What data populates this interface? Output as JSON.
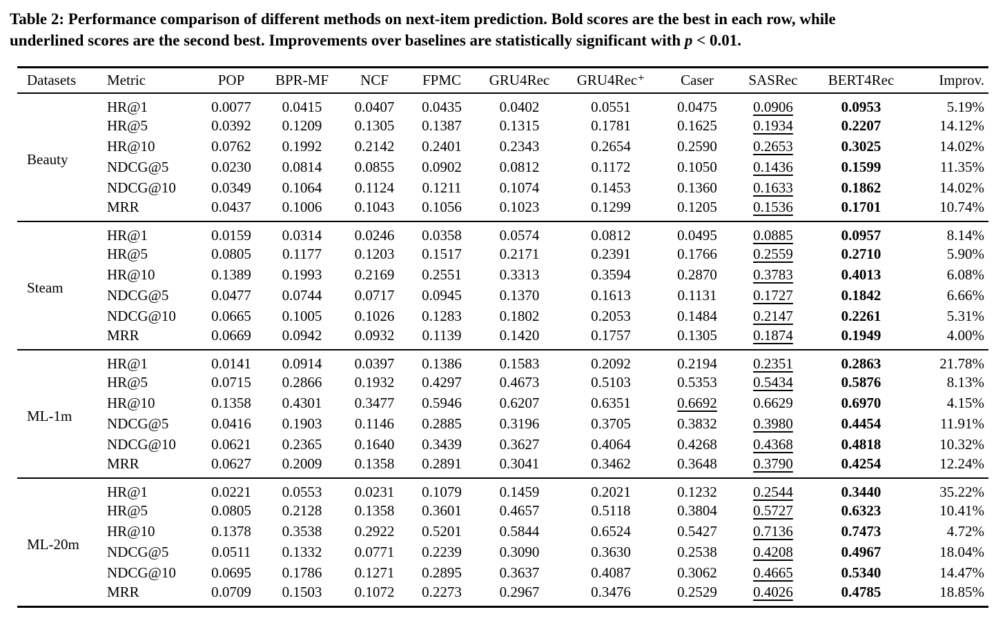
{
  "caption": {
    "line1": "Table 2: Performance comparison of different methods on next-item prediction. Bold scores are the best in each row, while",
    "line2_pre": "underlined scores are the second best. Improvements over baselines are statistically significant with ",
    "p_var": "p",
    "tail": " < 0.01."
  },
  "chart_data": {
    "type": "table",
    "title": "Table 2: Performance comparison of different methods on next-item prediction",
    "columns": [
      "Datasets",
      "Metric",
      "POP",
      "BPR-MF",
      "NCF",
      "FPMC",
      "GRU4Rec",
      "GRU4Rec⁺",
      "Caser",
      "SASRec",
      "BERT4Rec",
      "Improv."
    ],
    "groups": [
      {
        "dataset": "Beauty",
        "rows": [
          {
            "metric": "HR@1",
            "values": [
              "0.0077",
              "0.0415",
              "0.0407",
              "0.0435",
              "0.0402",
              "0.0551",
              "0.0475",
              "0.0906",
              "0.0953",
              "5.19%"
            ],
            "underline": 7,
            "bold": 8
          },
          {
            "metric": "HR@5",
            "values": [
              "0.0392",
              "0.1209",
              "0.1305",
              "0.1387",
              "0.1315",
              "0.1781",
              "0.1625",
              "0.1934",
              "0.2207",
              "14.12%"
            ],
            "underline": 7,
            "bold": 8
          },
          {
            "metric": "HR@10",
            "values": [
              "0.0762",
              "0.1992",
              "0.2142",
              "0.2401",
              "0.2343",
              "0.2654",
              "0.2590",
              "0.2653",
              "0.3025",
              "14.02%"
            ],
            "underline": 7,
            "bold": 8
          },
          {
            "metric": "NDCG@5",
            "values": [
              "0.0230",
              "0.0814",
              "0.0855",
              "0.0902",
              "0.0812",
              "0.1172",
              "0.1050",
              "0.1436",
              "0.1599",
              "11.35%"
            ],
            "underline": 7,
            "bold": 8
          },
          {
            "metric": "NDCG@10",
            "values": [
              "0.0349",
              "0.1064",
              "0.1124",
              "0.1211",
              "0.1074",
              "0.1453",
              "0.1360",
              "0.1633",
              "0.1862",
              "14.02%"
            ],
            "underline": 7,
            "bold": 8
          },
          {
            "metric": "MRR",
            "values": [
              "0.0437",
              "0.1006",
              "0.1043",
              "0.1056",
              "0.1023",
              "0.1299",
              "0.1205",
              "0.1536",
              "0.1701",
              "10.74%"
            ],
            "underline": 7,
            "bold": 8
          }
        ]
      },
      {
        "dataset": "Steam",
        "rows": [
          {
            "metric": "HR@1",
            "values": [
              "0.0159",
              "0.0314",
              "0.0246",
              "0.0358",
              "0.0574",
              "0.0812",
              "0.0495",
              "0.0885",
              "0.0957",
              "8.14%"
            ],
            "underline": 7,
            "bold": 8
          },
          {
            "metric": "HR@5",
            "values": [
              "0.0805",
              "0.1177",
              "0.1203",
              "0.1517",
              "0.2171",
              "0.2391",
              "0.1766",
              "0.2559",
              "0.2710",
              "5.90%"
            ],
            "underline": 7,
            "bold": 8
          },
          {
            "metric": "HR@10",
            "values": [
              "0.1389",
              "0.1993",
              "0.2169",
              "0.2551",
              "0.3313",
              "0.3594",
              "0.2870",
              "0.3783",
              "0.4013",
              "6.08%"
            ],
            "underline": 7,
            "bold": 8
          },
          {
            "metric": "NDCG@5",
            "values": [
              "0.0477",
              "0.0744",
              "0.0717",
              "0.0945",
              "0.1370",
              "0.1613",
              "0.1131",
              "0.1727",
              "0.1842",
              "6.66%"
            ],
            "underline": 7,
            "bold": 8
          },
          {
            "metric": "NDCG@10",
            "values": [
              "0.0665",
              "0.1005",
              "0.1026",
              "0.1283",
              "0.1802",
              "0.2053",
              "0.1484",
              "0.2147",
              "0.2261",
              "5.31%"
            ],
            "underline": 7,
            "bold": 8
          },
          {
            "metric": "MRR",
            "values": [
              "0.0669",
              "0.0942",
              "0.0932",
              "0.1139",
              "0.1420",
              "0.1757",
              "0.1305",
              "0.1874",
              "0.1949",
              "4.00%"
            ],
            "underline": 7,
            "bold": 8
          }
        ]
      },
      {
        "dataset": "ML-1m",
        "rows": [
          {
            "metric": "HR@1",
            "values": [
              "0.0141",
              "0.0914",
              "0.0397",
              "0.1386",
              "0.1583",
              "0.2092",
              "0.2194",
              "0.2351",
              "0.2863",
              "21.78%"
            ],
            "underline": 7,
            "bold": 8
          },
          {
            "metric": "HR@5",
            "values": [
              "0.0715",
              "0.2866",
              "0.1932",
              "0.4297",
              "0.4673",
              "0.5103",
              "0.5353",
              "0.5434",
              "0.5876",
              "8.13%"
            ],
            "underline": 7,
            "bold": 8
          },
          {
            "metric": "HR@10",
            "values": [
              "0.1358",
              "0.4301",
              "0.3477",
              "0.5946",
              "0.6207",
              "0.6351",
              "0.6692",
              "0.6629",
              "0.6970",
              "4.15%"
            ],
            "underline": 6,
            "bold": 8
          },
          {
            "metric": "NDCG@5",
            "values": [
              "0.0416",
              "0.1903",
              "0.1146",
              "0.2885",
              "0.3196",
              "0.3705",
              "0.3832",
              "0.3980",
              "0.4454",
              "11.91%"
            ],
            "underline": 7,
            "bold": 8
          },
          {
            "metric": "NDCG@10",
            "values": [
              "0.0621",
              "0.2365",
              "0.1640",
              "0.3439",
              "0.3627",
              "0.4064",
              "0.4268",
              "0.4368",
              "0.4818",
              "10.32%"
            ],
            "underline": 7,
            "bold": 8
          },
          {
            "metric": "MRR",
            "values": [
              "0.0627",
              "0.2009",
              "0.1358",
              "0.2891",
              "0.3041",
              "0.3462",
              "0.3648",
              "0.3790",
              "0.4254",
              "12.24%"
            ],
            "underline": 7,
            "bold": 8
          }
        ]
      },
      {
        "dataset": "ML-20m",
        "rows": [
          {
            "metric": "HR@1",
            "values": [
              "0.0221",
              "0.0553",
              "0.0231",
              "0.1079",
              "0.1459",
              "0.2021",
              "0.1232",
              "0.2544",
              "0.3440",
              "35.22%"
            ],
            "underline": 7,
            "bold": 8
          },
          {
            "metric": "HR@5",
            "values": [
              "0.0805",
              "0.2128",
              "0.1358",
              "0.3601",
              "0.4657",
              "0.5118",
              "0.3804",
              "0.5727",
              "0.6323",
              "10.41%"
            ],
            "underline": 7,
            "bold": 8
          },
          {
            "metric": "HR@10",
            "values": [
              "0.1378",
              "0.3538",
              "0.2922",
              "0.5201",
              "0.5844",
              "0.6524",
              "0.5427",
              "0.7136",
              "0.7473",
              "4.72%"
            ],
            "underline": 7,
            "bold": 8
          },
          {
            "metric": "NDCG@5",
            "values": [
              "0.0511",
              "0.1332",
              "0.0771",
              "0.2239",
              "0.3090",
              "0.3630",
              "0.2538",
              "0.4208",
              "0.4967",
              "18.04%"
            ],
            "underline": 7,
            "bold": 8
          },
          {
            "metric": "NDCG@10",
            "values": [
              "0.0695",
              "0.1786",
              "0.1271",
              "0.2895",
              "0.3637",
              "0.4087",
              "0.3062",
              "0.4665",
              "0.5340",
              "14.47%"
            ],
            "underline": 7,
            "bold": 8
          },
          {
            "metric": "MRR",
            "values": [
              "0.0709",
              "0.1503",
              "0.1072",
              "0.2273",
              "0.2967",
              "0.3476",
              "0.2529",
              "0.4026",
              "0.4785",
              "18.85%"
            ],
            "underline": 7,
            "bold": 8
          }
        ]
      }
    ]
  }
}
